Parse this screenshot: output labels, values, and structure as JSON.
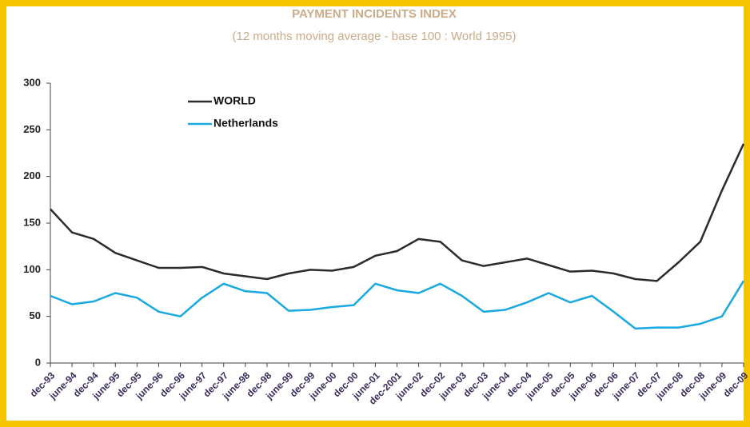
{
  "chart_data": {
    "type": "line",
    "title": "PAYMENT INCIDENTS INDEX",
    "subtitle": "(12 months moving average - base 100 : World 1995)",
    "categories": [
      "dec-93",
      "june-94",
      "dec-94",
      "june-95",
      "dec-95",
      "june-96",
      "dec-96",
      "june-97",
      "dec-97",
      "june-98",
      "dec-98",
      "june-99",
      "dec-99",
      "june-00",
      "dec-00",
      "june-01",
      "dec-2001",
      "june-02",
      "dec-02",
      "june-03",
      "dec-03",
      "june-04",
      "dec-04",
      "june-05",
      "dec-05",
      "june-06",
      "dec-06",
      "june-07",
      "dec-07",
      "june-08",
      "dec-08",
      "june-09",
      "dec-09"
    ],
    "series": [
      {
        "name": "WORLD",
        "color": "#2b2b2b",
        "values": [
          165,
          140,
          133,
          118,
          110,
          102,
          102,
          103,
          96,
          93,
          90,
          96,
          100,
          99,
          103,
          115,
          120,
          133,
          130,
          110,
          104,
          108,
          112,
          105,
          98,
          99,
          96,
          90,
          88,
          108,
          130,
          185,
          235
        ]
      },
      {
        "name": "Netherlands",
        "color": "#1aa8e0",
        "values": [
          72,
          63,
          66,
          75,
          70,
          55,
          50,
          70,
          85,
          77,
          75,
          56,
          57,
          60,
          62,
          85,
          78,
          75,
          85,
          72,
          55,
          57,
          65,
          75,
          65,
          72,
          55,
          37,
          38,
          38,
          42,
          50,
          88
        ]
      }
    ],
    "ylim": [
      0,
      300
    ],
    "yticks": [
      0,
      50,
      100,
      150,
      200,
      250,
      300
    ],
    "grid": false,
    "legend": "upper-left"
  }
}
